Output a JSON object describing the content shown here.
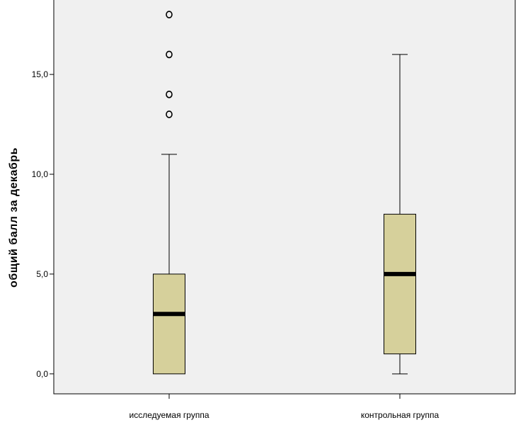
{
  "chart_data": {
    "type": "boxplot",
    "title": "",
    "xlabel": "",
    "ylabel": "общий балл за декабрь",
    "ylim": [
      -1.0,
      18.8
    ],
    "yticks": [
      0,
      5,
      10,
      15
    ],
    "ytick_labels": [
      "0,0",
      "5,0",
      "10,0",
      "15,0"
    ],
    "grid": false,
    "colors": {
      "plot_background": "#f0f0f0",
      "box_fill": "#d6d09b",
      "stroke": "#000000"
    },
    "categories": [
      "исследуемая группа",
      "контрольная группа"
    ],
    "boxes": [
      {
        "category": "исследуемая группа",
        "min": 0,
        "q1": 0,
        "median": 3,
        "q3": 5,
        "max": 11,
        "outliers": [
          13,
          14,
          16,
          18
        ]
      },
      {
        "category": "контрольная группа",
        "min": 0,
        "q1": 1,
        "median": 5,
        "q3": 8,
        "max": 16,
        "outliers": []
      }
    ]
  }
}
